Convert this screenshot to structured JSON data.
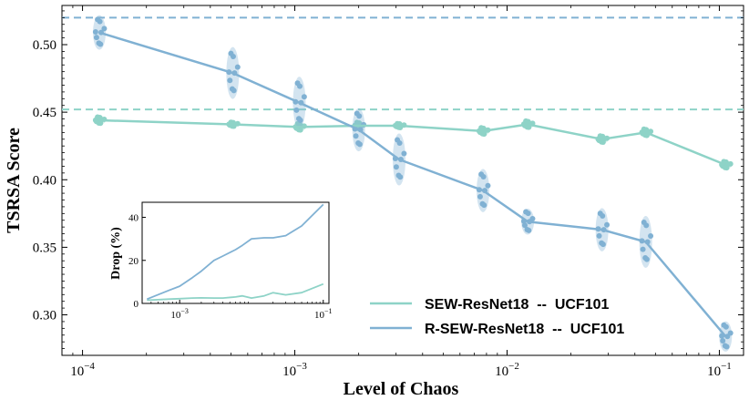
{
  "chart_data": [
    {
      "type": "line",
      "role": "main",
      "title": "",
      "xlabel": "Level of Chaos",
      "ylabel": "TSRSA Score",
      "xscale": "log",
      "xlim": [
        8e-05,
        0.13
      ],
      "ylim": [
        0.27,
        0.529
      ],
      "xticks": [
        0.0001,
        0.001,
        0.01,
        0.1
      ],
      "xtick_base": "10",
      "xtick_exponents": [
        "−4",
        "−3",
        "−2",
        "−1"
      ],
      "yticks": [
        0.3,
        0.35,
        0.4,
        0.45,
        0.5
      ],
      "ytick_labels": [
        "0.30",
        "0.35",
        "0.40",
        "0.45",
        "0.50"
      ],
      "grid": false,
      "legend_position": "bottom-right",
      "x": [
        0.00012,
        0.00051,
        0.00105,
        0.002,
        0.0031,
        0.0077,
        0.0125,
        0.028,
        0.045,
        0.107
      ],
      "series": [
        {
          "name": "SEW-ResNet18  --  UCF101",
          "color": "#8ed3c7",
          "baseline": 0.452,
          "values": [
            0.444,
            0.441,
            0.439,
            0.44,
            0.44,
            0.436,
            0.441,
            0.43,
            0.435,
            0.411
          ],
          "spread": [
            0.002,
            0.001,
            0.002,
            0.002,
            0.001,
            0.002,
            0.002,
            0.002,
            0.002,
            0.002
          ]
        },
        {
          "name": "R-SEW-ResNet18  --  UCF101",
          "color": "#80b1d3",
          "baseline": 0.52,
          "values": [
            0.509,
            0.479,
            0.457,
            0.437,
            0.415,
            0.392,
            0.369,
            0.363,
            0.354,
            0.284
          ],
          "spread": [
            0.008,
            0.012,
            0.012,
            0.01,
            0.012,
            0.01,
            0.006,
            0.01,
            0.012,
            0.007
          ]
        }
      ]
    },
    {
      "type": "line",
      "role": "inset",
      "xlabel": "",
      "ylabel": "Drop (%)",
      "xscale": "log",
      "xlim": [
        0.0003,
        0.12
      ],
      "ylim": [
        0,
        47
      ],
      "xticks": [
        0.001,
        0.1
      ],
      "xtick_base": "10",
      "xtick_exponents": [
        "−3",
        "−1"
      ],
      "yticks": [
        0,
        20,
        40
      ],
      "ytick_labels": [
        "0",
        "20",
        "40"
      ],
      "x": [
        0.00035,
        0.0007,
        0.001,
        0.0015,
        0.002,
        0.003,
        0.004,
        0.006,
        0.0075,
        0.01,
        0.015,
        0.02,
        0.03,
        0.05,
        0.1
      ],
      "series": [
        {
          "name": "SEW-ResNet18",
          "color": "#8ed3c7",
          "values": [
            1.5,
            2.0,
            2.2,
            2.5,
            2.6,
            2.5,
            2.5,
            3.0,
            3.5,
            2.5,
            3.5,
            5.0,
            4.0,
            5.0,
            9.0
          ]
        },
        {
          "name": "R-SEW-ResNet18",
          "color": "#80b1d3",
          "values": [
            2.0,
            6.0,
            8.0,
            12.0,
            15.0,
            20.0,
            22.0,
            25.0,
            27.0,
            30.0,
            30.5,
            30.5,
            31.5,
            36.0,
            46.0
          ]
        }
      ]
    }
  ]
}
